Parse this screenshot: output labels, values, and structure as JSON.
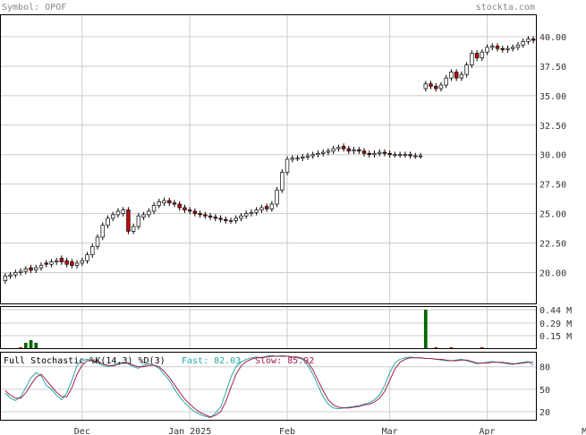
{
  "header": {
    "symbol_label": "Symbol: OPOF",
    "brand": "stockta.com"
  },
  "indicator": {
    "title": "Full Stochastic %K(14,3) %D(3)",
    "fast_label": "Fast: 82.03",
    "slow_label": "Slow: 85.92",
    "fast_color": "#2aa7a7",
    "slow_color": "#a0204a"
  },
  "colors": {
    "up_candle": "#ffffff",
    "down_candle": "#cc0000",
    "volume": "#006600",
    "grid": "#cccccc"
  },
  "chart_data": [
    {
      "type": "candlestick",
      "title": "",
      "y_axis": {
        "min": 17.3,
        "max": 41.9,
        "ticks": [
          20.0,
          22.5,
          25.0,
          27.5,
          30.0,
          32.5,
          35.0,
          37.5,
          40.0
        ],
        "tick_labels": [
          "20.00",
          "22.50",
          "25.00",
          "27.50",
          "30.00",
          "32.50",
          "35.00",
          "37.50",
          "40.00"
        ],
        "position": "right"
      },
      "x_axis": {
        "tick_labels": [
          "Dec",
          "Jan 2025",
          "Feb",
          "Mar",
          "Apr",
          "May"
        ],
        "tick_index": [
          15,
          36,
          55,
          75,
          94,
          114
        ]
      },
      "grid": true,
      "close": [
        19.7,
        19.8,
        20.0,
        20.1,
        20.3,
        20.2,
        20.4,
        20.6,
        20.7,
        20.9,
        21.0,
        20.9,
        20.7,
        20.6,
        20.8,
        21.0,
        21.5,
        22.2,
        23.0,
        24.0,
        24.6,
        24.9,
        25.2,
        25.3,
        23.5,
        23.9,
        24.8,
        24.9,
        25.2,
        25.7,
        26.0,
        26.1,
        25.9,
        25.8,
        25.5,
        25.3,
        25.2,
        25.0,
        24.9,
        24.8,
        24.7,
        24.6,
        24.5,
        24.4,
        24.4,
        24.6,
        24.8,
        25.0,
        25.1,
        25.3,
        25.5,
        25.4,
        25.8,
        27.0,
        28.5,
        29.6,
        29.7,
        29.7,
        29.8,
        29.9,
        30.0,
        30.1,
        30.2,
        30.3,
        30.5,
        30.6,
        30.5,
        30.3,
        30.4,
        30.3,
        30.1,
        30.0,
        30.1,
        30.2,
        30.1,
        30.0,
        30.0,
        30.0,
        30.0,
        29.9,
        29.9,
        29.9,
        36.0,
        35.8,
        35.6,
        35.9,
        36.5,
        37.0,
        36.5,
        36.8,
        37.6,
        38.6,
        38.2,
        38.7,
        39.1,
        39.2,
        39.0,
        38.9,
        39.0,
        39.1,
        39.3,
        39.6,
        39.8,
        39.7
      ],
      "open_offset": [
        -0.4,
        -0.1,
        -0.2,
        -0.1,
        -0.2,
        0.2,
        -0.2,
        -0.2,
        0.1,
        -0.2,
        -0.1,
        0.3,
        0.3,
        0.3,
        -0.2,
        -0.2,
        -0.5,
        -0.7,
        -0.8,
        -1.0,
        -0.6,
        -0.3,
        -0.3,
        -0.3,
        1.8,
        -0.4,
        -0.9,
        -0.2,
        -0.3,
        -0.5,
        -0.3,
        -0.2,
        0.2,
        0.1,
        0.3,
        0.2,
        0.1,
        0.2,
        0.1,
        0.1,
        0.1,
        0.1,
        0.1,
        0.1,
        0.0,
        -0.2,
        -0.2,
        -0.2,
        -0.1,
        -0.2,
        -0.2,
        0.2,
        -0.4,
        -1.2,
        -1.5,
        -1.1,
        -0.1,
        0.0,
        -0.1,
        -0.1,
        -0.1,
        -0.1,
        -0.1,
        -0.1,
        -0.2,
        -0.1,
        0.2,
        0.2,
        -0.1,
        0.1,
        0.2,
        0.1,
        -0.1,
        -0.1,
        0.1,
        0.1,
        0.0,
        0.0,
        0.0,
        0.1,
        0.0,
        0.0,
        -0.4,
        0.2,
        0.2,
        -0.3,
        -0.6,
        -0.5,
        0.5,
        -0.3,
        -0.8,
        -1.0,
        0.4,
        -0.5,
        -0.4,
        -0.1,
        0.2,
        0.1,
        -0.1,
        -0.1,
        -0.2,
        -0.3,
        -0.2,
        0.1
      ],
      "volume": [
        0.02,
        0.01,
        0.0,
        0.04,
        0.06,
        0.01,
        0.0,
        0.01,
        0.0,
        0.0,
        0.0,
        0.0,
        0.0,
        0.0,
        0.0,
        0.0,
        0.0,
        0.0,
        0.0,
        0.0,
        0.0,
        0.0,
        0.0,
        0.0,
        0.0,
        0.0,
        0.0,
        0.0,
        0.0,
        0.0,
        0.0,
        0.0,
        0.0,
        0.0,
        0.0,
        0.0,
        0.0,
        0.0,
        0.0,
        0.0,
        0.0,
        0.0,
        0.0,
        0.0,
        0.0,
        0.0,
        0.0,
        0.0,
        0.0,
        0.0,
        0.0,
        0.0,
        0.0,
        0.0,
        0.0,
        0.0,
        0.0,
        0.0,
        0.0,
        0.0,
        0.0,
        0.0,
        0.0,
        0.0,
        0.0,
        0.0,
        0.0,
        0.0,
        0.0,
        0.0,
        0.0,
        0.0,
        0.0,
        0.0,
        0.0,
        0.0,
        0.0,
        0.0,
        0.0,
        0.0,
        0.0,
        0.0,
        0.0,
        0.0,
        0.0,
        0.0,
        0.0,
        0.0,
        0.0,
        0.0,
        0.0,
        0.0,
        0.0,
        0.0,
        0.0,
        0.0,
        0.0,
        0.0,
        0.0,
        0.0,
        0.0,
        0.0,
        0.0,
        0.0
      ]
    },
    {
      "type": "bar",
      "title": "",
      "y_axis": {
        "max": 0.44,
        "ticks": [
          0.15,
          0.29,
          0.44
        ],
        "tick_labels": [
          "0.15 M",
          "0.29 M",
          "0.44 M"
        ],
        "position": "right"
      },
      "values": [
        0.01,
        0.01,
        0.0,
        0.02,
        0.07,
        0.1,
        0.07,
        0.0,
        0.0,
        0.01,
        0.0,
        0.0,
        0.0,
        0.01,
        0.0,
        0.0,
        0.0,
        0.0,
        0.0,
        0.0,
        0.0,
        0.0,
        0.0,
        0.0,
        0.0,
        0.0,
        0.0,
        0.0,
        0.0,
        0.0,
        0.0,
        0.0,
        0.0,
        0.0,
        0.0,
        0.0,
        0.0,
        0.0,
        0.0,
        0.0,
        0.0,
        0.0,
        0.0,
        0.0,
        0.0,
        0.0,
        0.0,
        0.0,
        0.0,
        0.0,
        0.0,
        0.0,
        0.0,
        0.0,
        0.0,
        0.0,
        0.01,
        0.01,
        0.0,
        0.0,
        0.0,
        0.0,
        0.0,
        0.0,
        0.0,
        0.0,
        0.01,
        0.0,
        0.0,
        0.0,
        0.0,
        0.01,
        0.0,
        0.01,
        0.0,
        0.0,
        0.01,
        0.0,
        0.0,
        0.0,
        0.0,
        0.0,
        0.44,
        0.0,
        0.02,
        0.0,
        0.01,
        0.02,
        0.01,
        0.01,
        0.0,
        0.0,
        0.01,
        0.02,
        0.01,
        0.01,
        0.0,
        0.0,
        0.0,
        0.0,
        0.01,
        0.0,
        0.0,
        0.01
      ]
    },
    {
      "type": "line",
      "title": "",
      "y_axis": {
        "min": 8,
        "max": 100,
        "ticks": [
          20,
          50,
          80
        ],
        "tick_labels": [
          "20",
          "50",
          "80"
        ],
        "position": "right"
      },
      "series": [
        {
          "values": [
            45,
            38,
            35,
            40,
            52,
            65,
            72,
            68,
            55,
            50,
            42,
            36,
            45,
            62,
            82,
            88,
            90,
            88,
            85,
            82,
            80,
            82,
            85,
            86,
            84,
            80,
            78,
            82,
            84,
            82,
            78,
            70,
            62,
            50,
            40,
            32,
            25,
            20,
            16,
            14,
            12,
            18,
            26,
            45,
            66,
            80,
            86,
            90,
            92,
            93,
            92,
            94,
            95,
            94,
            95,
            94,
            93,
            92,
            90,
            82,
            70,
            55,
            40,
            30,
            25,
            24,
            25,
            26,
            27,
            28,
            30,
            32,
            36,
            42,
            55,
            72,
            85,
            90,
            92,
            93,
            92,
            92,
            91,
            91,
            90,
            89,
            88,
            88,
            89,
            90,
            88,
            86,
            84,
            85,
            86,
            87,
            86,
            85,
            84,
            83,
            85,
            86,
            87,
            82
          ]
        },
        {
          "values": [
            48,
            42,
            38,
            38,
            45,
            56,
            66,
            70,
            62,
            54,
            46,
            40,
            40,
            52,
            70,
            82,
            88,
            88,
            87,
            84,
            82,
            81,
            83,
            85,
            85,
            82,
            80,
            80,
            82,
            82,
            80,
            74,
            66,
            56,
            46,
            37,
            30,
            24,
            19,
            16,
            13,
            15,
            20,
            33,
            52,
            70,
            81,
            87,
            90,
            92,
            92,
            93,
            94,
            94,
            94,
            94,
            93,
            93,
            91,
            86,
            76,
            62,
            48,
            36,
            29,
            26,
            25,
            25,
            26,
            27,
            29,
            30,
            33,
            38,
            47,
            62,
            77,
            86,
            90,
            92,
            92,
            92,
            91,
            91,
            90,
            90,
            89,
            88,
            88,
            89,
            89,
            87,
            85,
            85,
            85,
            86,
            86,
            86,
            85,
            84,
            84,
            85,
            86,
            86
          ]
        }
      ]
    }
  ]
}
